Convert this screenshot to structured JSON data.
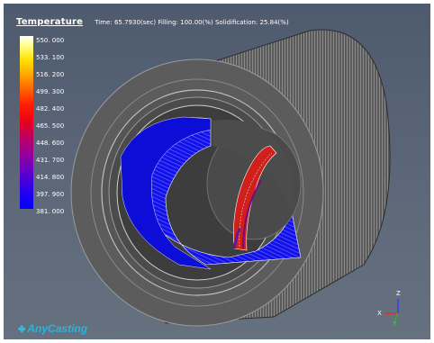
{
  "header": {
    "title": "Temperature",
    "info": "Time: 65.7930(sec)  Filling: 100.00(%)  Solidification: 25.84(%)"
  },
  "colorbar": {
    "labels": [
      "550. 000",
      "533. 100",
      "516. 200",
      "499. 300",
      "482. 400",
      "465. 500",
      "448. 600",
      "431. 700",
      "414. 800",
      "397. 900",
      "381. 000"
    ]
  },
  "axes": {
    "z": "Z",
    "x": "X",
    "y": "Y"
  },
  "brand": {
    "logo": "✤",
    "name": "AnyCasting"
  }
}
